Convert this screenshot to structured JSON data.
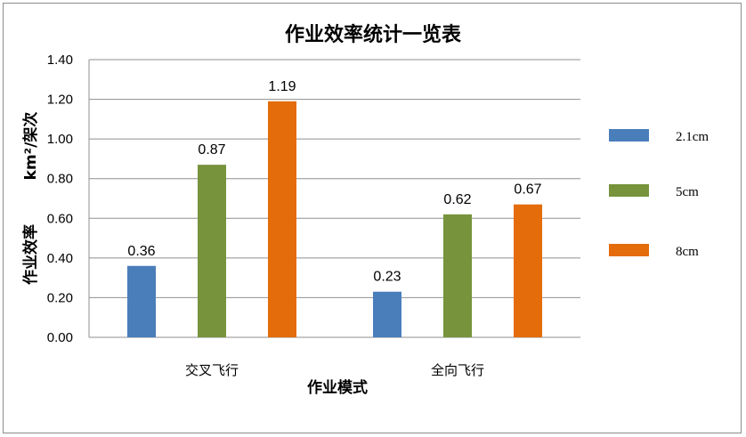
{
  "chart_data": {
    "type": "bar",
    "title": "作业效率统计一览表",
    "xlabel": "作业模式",
    "ylabel_lines": [
      "作业效率",
      "km²/架次"
    ],
    "categories": [
      "交叉飞行",
      "全向飞行"
    ],
    "series": [
      {
        "name": "2.1cm",
        "values": [
          0.36,
          0.23
        ],
        "color": "#4a7ebb"
      },
      {
        "name": "5cm",
        "values": [
          0.87,
          0.62
        ],
        "color": "#77933c"
      },
      {
        "name": "8cm",
        "values": [
          1.19,
          0.67
        ],
        "color": "#e46c0a"
      }
    ],
    "ylim": [
      0,
      1.4
    ],
    "yticks": [
      "0.00",
      "0.20",
      "0.40",
      "0.60",
      "0.80",
      "1.00",
      "1.20",
      "1.40"
    ],
    "data_labels": [
      [
        "0.36",
        "0.23"
      ],
      [
        "0.87",
        "0.62"
      ],
      [
        "1.19",
        "0.67"
      ]
    ],
    "grid": true,
    "legend_position": "right"
  }
}
